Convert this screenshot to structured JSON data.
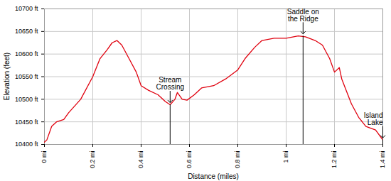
{
  "chart_data": {
    "type": "line",
    "x_label": "Distance (miles)",
    "y_label": "Elevation (feet)",
    "color": "#e0000e",
    "grid": true,
    "x": [
      0,
      0.01,
      0.03,
      0.05,
      0.08,
      0.1,
      0.15,
      0.2,
      0.23,
      0.26,
      0.28,
      0.3,
      0.32,
      0.35,
      0.38,
      0.4,
      0.43,
      0.47,
      0.5,
      0.52,
      0.54,
      0.55,
      0.57,
      0.59,
      0.62,
      0.65,
      0.7,
      0.75,
      0.8,
      0.83,
      0.87,
      0.9,
      0.95,
      1.0,
      1.05,
      1.08,
      1.12,
      1.15,
      1.18,
      1.2,
      1.22,
      1.23,
      1.27,
      1.3,
      1.33,
      1.37,
      1.4
    ],
    "values": [
      10405,
      10410,
      10440,
      10450,
      10455,
      10470,
      10500,
      10550,
      10590,
      10610,
      10625,
      10630,
      10620,
      10590,
      10560,
      10530,
      10520,
      10510,
      10495,
      10488,
      10500,
      10515,
      10500,
      10498,
      10510,
      10525,
      10530,
      10545,
      10565,
      10590,
      10615,
      10630,
      10635,
      10635,
      10640,
      10638,
      10630,
      10620,
      10590,
      10560,
      10570,
      10545,
      10490,
      10460,
      10440,
      10432,
      10410
    ],
    "xlim": [
      0,
      1.4
    ],
    "ylim": [
      10400,
      10700
    ],
    "xticks": [
      {
        "value": 0,
        "label": "0 mi"
      },
      {
        "value": 0.2,
        "label": "0.2 mi"
      },
      {
        "value": 0.4,
        "label": "0.4 mi"
      },
      {
        "value": 0.6,
        "label": "0.6 mi"
      },
      {
        "value": 0.8,
        "label": "0.8 mi"
      },
      {
        "value": 1,
        "label": "1 mi"
      },
      {
        "value": 1.2,
        "label": "1.2 mi"
      },
      {
        "value": 1.4,
        "label": "1.4 mi"
      }
    ],
    "yticks": [
      {
        "value": 10400,
        "label": "10400 ft"
      },
      {
        "value": 10450,
        "label": "10450 ft"
      },
      {
        "value": 10500,
        "label": "10500 ft"
      },
      {
        "value": 10550,
        "label": "10550 ft"
      },
      {
        "value": 10600,
        "label": "10600 ft"
      },
      {
        "value": 10650,
        "label": "10650 ft"
      },
      {
        "value": 10700,
        "label": "10700 ft"
      }
    ],
    "annotations": [
      {
        "text": "Stream\nCrossing",
        "x": 0.52,
        "y": 10488
      },
      {
        "text": "Saddle on\nthe Ridge",
        "x": 1.07,
        "y": 10640
      },
      {
        "text": "Island\nLake",
        "x": 1.4,
        "y": 10410
      }
    ]
  }
}
